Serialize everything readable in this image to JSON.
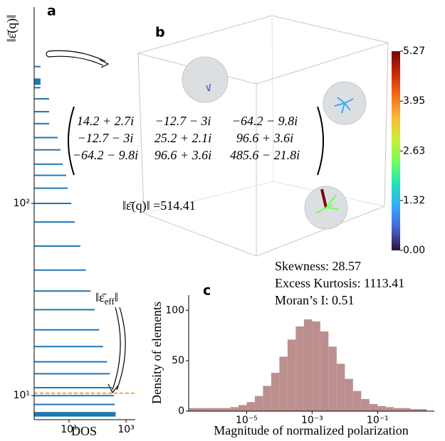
{
  "chart_data": [
    {
      "type": "barh",
      "label": "a",
      "ylabel": "‖ε̄(q)‖",
      "xlabel": "DOS",
      "color": "#1f77b4",
      "xscale": "log",
      "yscale": "log",
      "y": [
        515,
        430,
        400,
        350,
        300,
        260,
        220,
        190,
        160,
        140,
        120,
        100,
        80,
        60,
        45,
        35,
        28,
        22,
        18,
        15,
        13,
        11,
        10,
        9,
        8
      ],
      "values": [
        1,
        1,
        1,
        2,
        2,
        2,
        4,
        5,
        6,
        8,
        9,
        12,
        16,
        25,
        39,
        57,
        80,
        115,
        155,
        215,
        270,
        325,
        375,
        400,
        430
      ],
      "xlim": [
        0.6,
        2100
      ],
      "ylim": [
        7.5,
        1050
      ],
      "xticks": [
        {
          "value": 10,
          "label": "10¹"
        },
        {
          "value": 1000,
          "label": "10³"
        }
      ],
      "yticks": [
        {
          "value": 10,
          "label": "10¹"
        },
        {
          "value": 100,
          "label": "10²"
        }
      ],
      "hline": {
        "value": 10.3,
        "color": "#ff7f0e"
      },
      "annotation": [
        "‖ε̄",
        "eff",
        "‖"
      ]
    },
    {
      "type": "colorbar",
      "label": "b",
      "matrix": [
        [
          "14.2 + 2.7i",
          "−12.7 − 3i",
          "−64.2 − 9.8i"
        ],
        [
          "−12.7 − 3i",
          "25.2 + 2.1i",
          "96.6 + 3.6i"
        ],
        [
          "−64.2 − 9.8i",
          "96.6 + 3.6i",
          "485.6 − 21.8i"
        ]
      ],
      "annotation": "‖ε̄(q)‖ =514.41",
      "clim": [
        0,
        5.27
      ],
      "ticks": [
        {
          "value": 0,
          "label": "0.00"
        },
        {
          "value": 1.32,
          "label": "1.32"
        },
        {
          "value": 2.63,
          "label": "2.63"
        },
        {
          "value": 3.95,
          "label": "3.95"
        },
        {
          "value": 5.27,
          "label": "5.27"
        }
      ],
      "colormap": [
        "#30123b",
        "#4662d7",
        "#36aaf9",
        "#1ae4b6",
        "#72fe5e",
        "#c8ef34",
        "#faba39",
        "#f66b19",
        "#ca2a04",
        "#7a0403"
      ],
      "stats": [
        "Skewness: 28.57",
        "Excess Kurtosis: 1113.41",
        "Moran’s I: 0.51"
      ]
    },
    {
      "type": "histogram",
      "label": "c",
      "ylabel": "Density of elements",
      "xlabel": "Magnitude of normalized polarization",
      "color": "#bc8f8f",
      "xscale": "log",
      "bins": [
        1.778e-07,
        3.162e-07,
        5.623e-07,
        1e-06,
        1.778e-06,
        3.162e-06,
        5.623e-06,
        1e-05,
        1.778e-05,
        3.162e-05,
        5.623e-05,
        0.0001,
        0.0001778,
        0.0003162,
        0.0005623,
        0.001,
        0.001778,
        0.003162,
        0.005623,
        0.01,
        0.01778,
        0.03162,
        0.05623,
        0.1,
        0.1778,
        0.3162,
        0.5623,
        1,
        1.778,
        3.162
      ],
      "values": [
        3,
        3,
        3,
        3,
        3,
        4,
        6,
        9,
        15,
        25,
        38,
        54,
        71,
        84,
        91,
        89,
        79,
        64,
        47,
        32,
        20,
        12,
        7,
        5,
        4,
        3,
        3,
        2,
        2
      ],
      "xlim": [
        1.7e-07,
        5.4
      ],
      "ylim": [
        0,
        115
      ],
      "xticks": [
        {
          "value": 1e-05,
          "label": "10⁻⁵"
        },
        {
          "value": 0.001,
          "label": "10⁻³"
        },
        {
          "value": 0.1,
          "label": "10⁻¹"
        }
      ],
      "yticks": [
        0,
        50,
        100
      ]
    }
  ]
}
